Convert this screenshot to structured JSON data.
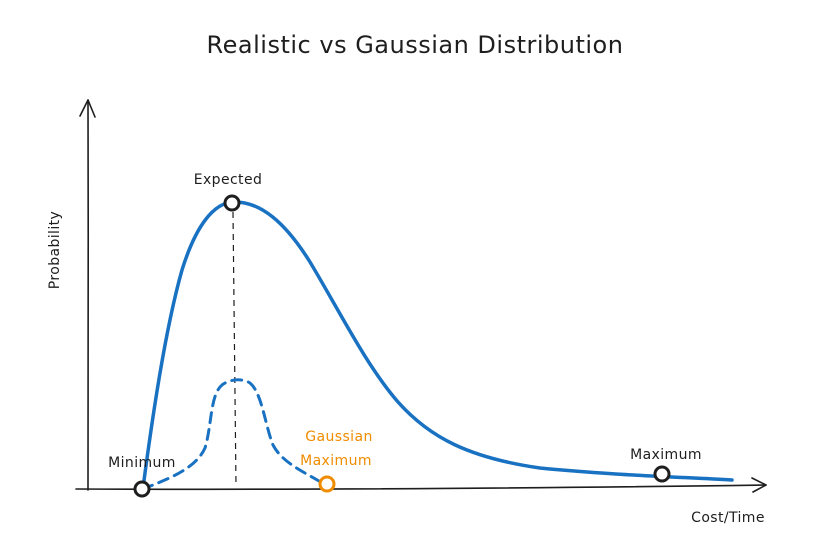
{
  "title": "Realistic vs Gaussian Distribution",
  "axes": {
    "x_label": "Cost/Time",
    "y_label": "Probability"
  },
  "labels": {
    "expected": "Expected",
    "minimum": "Minimum",
    "maximum": "Maximum",
    "gaussian_line1": "Gaussian",
    "gaussian_line2": "Maximum"
  },
  "colors": {
    "realistic_curve": "#1971c2",
    "gaussian_curve": "#1971c2",
    "gaussian_max": "#f08c00",
    "ink": "#1e1e1e"
  },
  "curves": {
    "realistic": "right-skewed distribution (solid)",
    "gaussian": "normal distribution (dashed)"
  }
}
